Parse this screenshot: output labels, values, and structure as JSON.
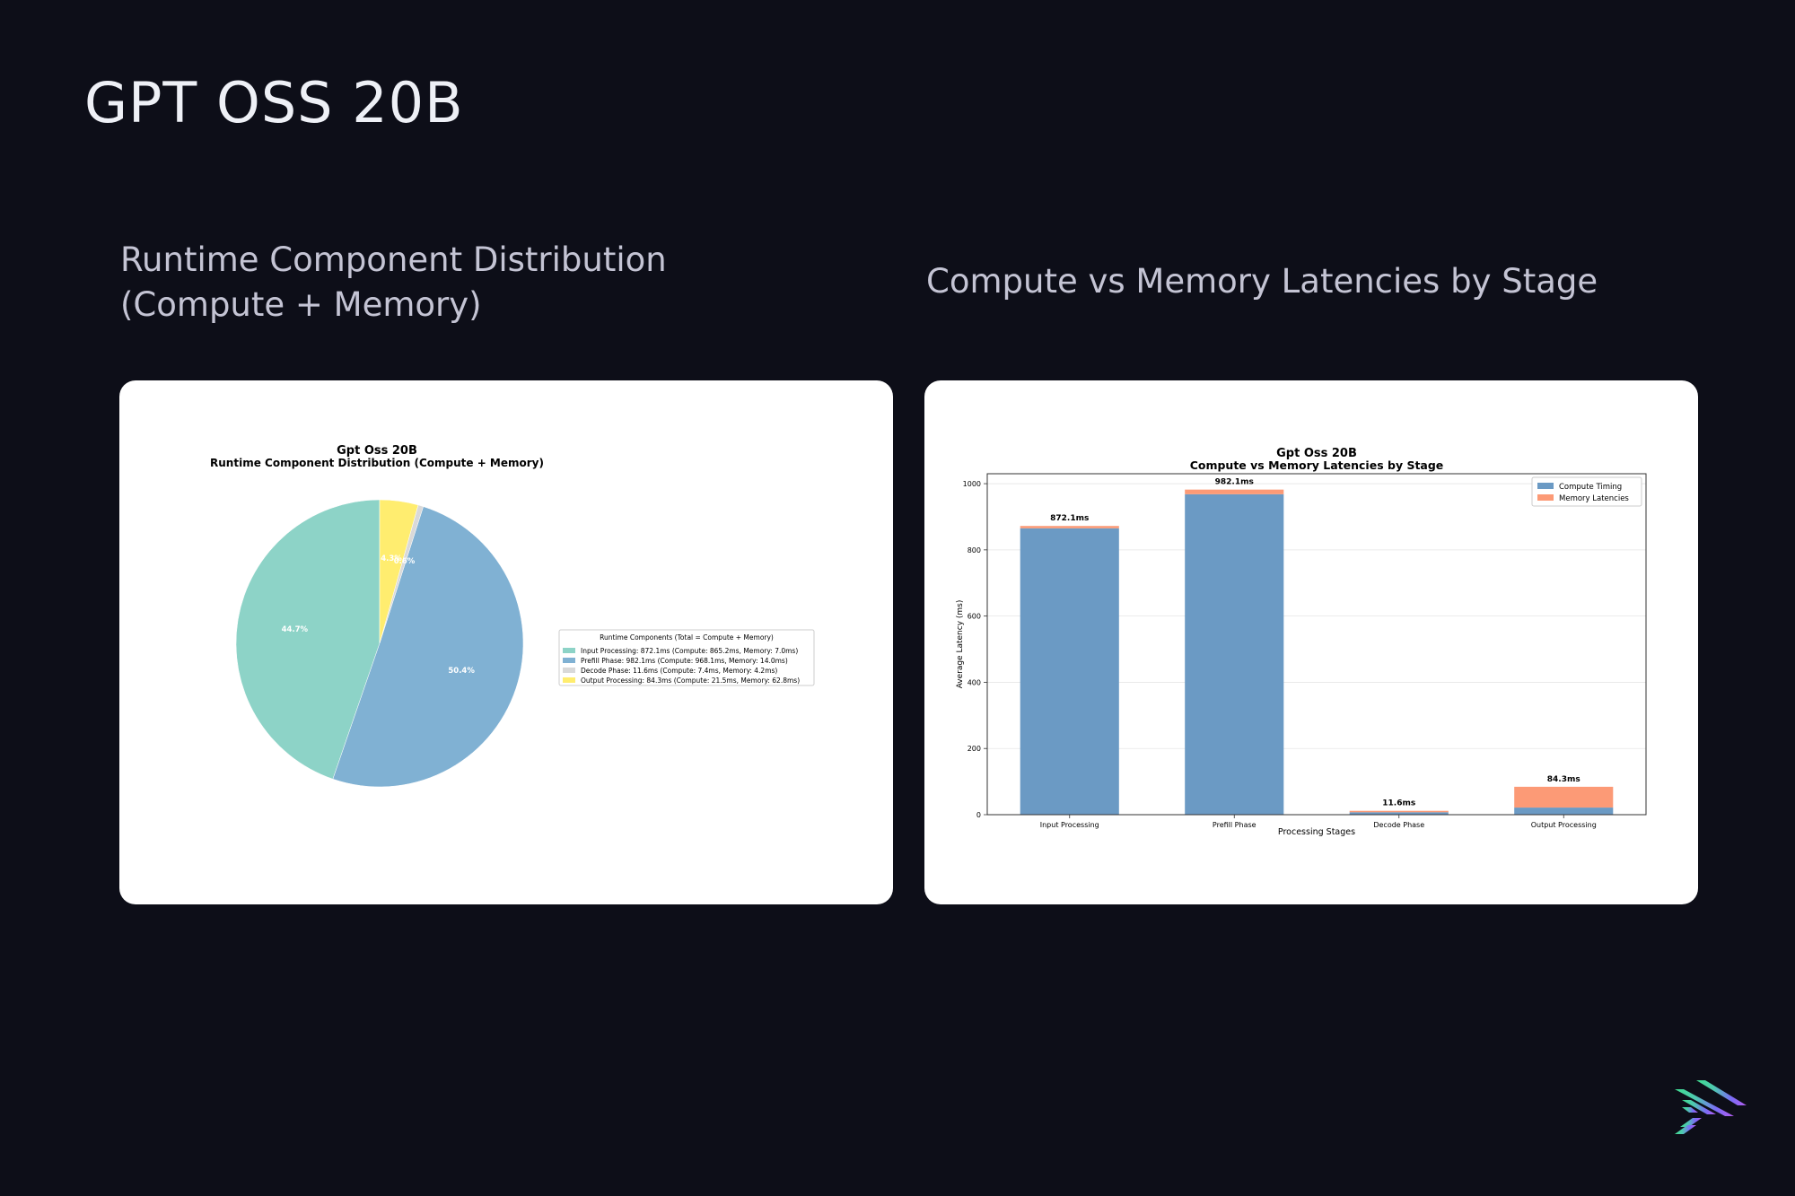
{
  "page": {
    "title": "GPT OSS 20B"
  },
  "sections": {
    "pie": {
      "heading_lines": [
        "Runtime Component Distribution",
        "(Compute + Memory)"
      ]
    },
    "bar": {
      "heading_lines": [
        "Compute vs Memory Latencies by Stage"
      ]
    }
  },
  "chart_data": [
    {
      "type": "pie",
      "title": "Gpt Oss 20B",
      "subtitle": "Runtime Component Distribution (Compute + Memory)",
      "legend_title": "Runtime Components (Total = Compute + Memory)",
      "legend_position": "right",
      "slices": [
        {
          "name": "Input Processing",
          "value": 872.1,
          "compute": 865.2,
          "memory": 7.0,
          "percent_label": "44.7%",
          "legend_label": "Input Processing: 872.1ms (Compute: 865.2ms, Memory: 7.0ms)",
          "color": "#8dd3c7"
        },
        {
          "name": "Prefill Phase",
          "value": 982.1,
          "compute": 968.1,
          "memory": 14.0,
          "percent_label": "50.4%",
          "legend_label": "Prefill Phase: 982.1ms (Compute: 968.1ms, Memory: 14.0ms)",
          "color": "#80b1d3"
        },
        {
          "name": "Decode Phase",
          "value": 11.6,
          "compute": 7.4,
          "memory": 4.2,
          "percent_label": "0.6%",
          "legend_label": "Decode Phase: 11.6ms (Compute: 7.4ms, Memory: 4.2ms)",
          "color": "#d9d9d9"
        },
        {
          "name": "Output Processing",
          "value": 84.3,
          "compute": 21.5,
          "memory": 62.8,
          "percent_label": "4.3%",
          "legend_label": "Output Processing: 84.3ms (Compute: 21.5ms, Memory: 62.8ms)",
          "color": "#ffed6f"
        }
      ]
    },
    {
      "type": "bar",
      "stacked": true,
      "title": "Gpt Oss 20B",
      "subtitle": "Compute vs Memory Latencies by Stage",
      "xlabel": "Processing Stages",
      "ylabel": "Average Latency (ms)",
      "ylim": [
        0,
        1030
      ],
      "yticks": [
        0,
        200,
        400,
        600,
        800,
        1000
      ],
      "grid": "horizontal",
      "legend_position": "top-right",
      "categories": [
        "Input Processing",
        "Prefill Phase",
        "Decode Phase",
        "Output Processing"
      ],
      "series": [
        {
          "name": "Compute Timing",
          "color": "#6b9ac4",
          "values": [
            865.2,
            968.1,
            7.4,
            21.5
          ]
        },
        {
          "name": "Memory Latencies",
          "color": "#fc9a76",
          "values": [
            7.0,
            14.0,
            4.2,
            62.8
          ]
        }
      ],
      "total_labels": [
        "872.1ms",
        "982.1ms",
        "11.6ms",
        "84.3ms"
      ]
    }
  ],
  "logo": {
    "name": "brand-logo-icon",
    "colors": [
      "#3fdc8f",
      "#4ec9b0",
      "#7b6cf6",
      "#b45cf0"
    ]
  }
}
